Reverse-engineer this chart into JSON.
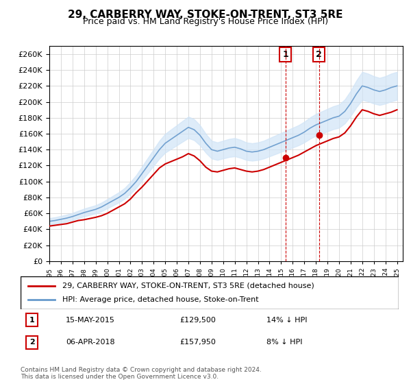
{
  "title": "29, CARBERRY WAY, STOKE-ON-TRENT, ST3 5RE",
  "subtitle": "Price paid vs. HM Land Registry's House Price Index (HPI)",
  "legend_label1": "29, CARBERRY WAY, STOKE-ON-TRENT, ST3 5RE (detached house)",
  "legend_label2": "HPI: Average price, detached house, Stoke-on-Trent",
  "annotation1_label": "1",
  "annotation1_date": "15-MAY-2015",
  "annotation1_price": "£129,500",
  "annotation1_pct": "14% ↓ HPI",
  "annotation1_year": 2015.37,
  "annotation1_value": 129500,
  "annotation2_label": "2",
  "annotation2_date": "06-APR-2018",
  "annotation2_price": "£157,950",
  "annotation2_pct": "8% ↓ HPI",
  "annotation2_year": 2018.26,
  "annotation2_value": 157950,
  "footer": "Contains HM Land Registry data © Crown copyright and database right 2024.\nThis data is licensed under the Open Government Licence v3.0.",
  "price_color": "#cc0000",
  "hpi_color": "#6699cc",
  "hpi_fill_color": "#d0e4f7",
  "grid_color": "#cccccc",
  "background_color": "#ffffff",
  "ylim": [
    0,
    270000
  ],
  "yticks": [
    0,
    20000,
    40000,
    60000,
    80000,
    100000,
    120000,
    140000,
    160000,
    180000,
    200000,
    220000,
    240000,
    260000
  ],
  "xmin": 1995,
  "xmax": 2025.5
}
